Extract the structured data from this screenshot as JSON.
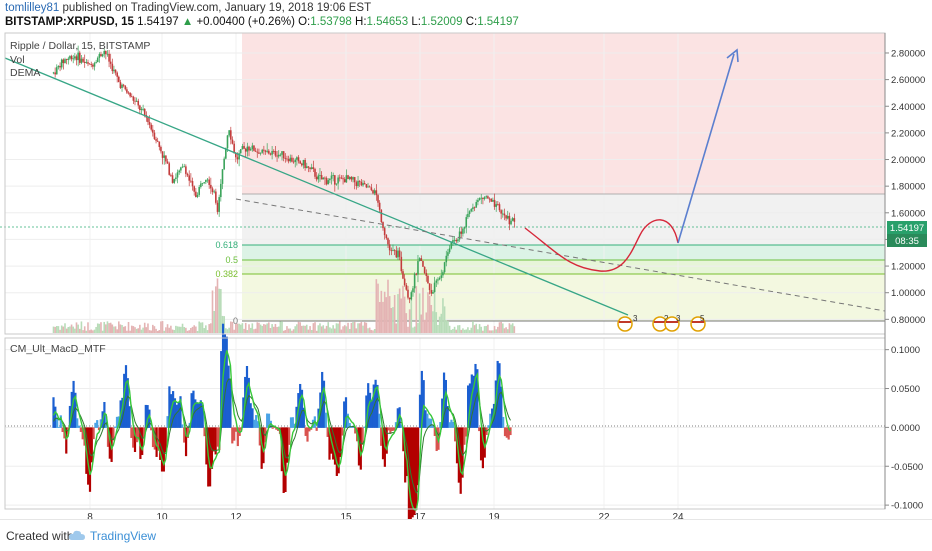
{
  "header": {
    "author": "tomlilley81",
    "published_text": "published on TradingView.com, January 19, 2018 19:06 EST",
    "symbol": "BITSTAMP:XRPUSD, 15",
    "last": "1.54197",
    "up_glyph": "▲",
    "change": "+0.00400 (+0.26%)",
    "o_label": "O:",
    "o": "1.53798",
    "h_label": "H:",
    "h": "1.54653",
    "l_label": "L:",
    "l": "1.52009",
    "c_label": "C:",
    "c": "1.54197"
  },
  "price_pane": {
    "legend": [
      "Ripple / Dollar, 15, BITSTAMP",
      "Vol",
      "DEMA"
    ],
    "price_badge": "1.54197",
    "time_badge": "08:35",
    "fib_labels": [
      "0.618",
      "0.5",
      "0.382",
      "0"
    ],
    "event_badges": [
      "3",
      "2",
      "3",
      "5"
    ]
  },
  "macd_pane": {
    "legend": "CM_Ult_MacD_MTF"
  },
  "colors": {
    "up": "#2e9e4a",
    "link": "#2a6ab4",
    "down_bar": "#b30000",
    "pos_bar": "#1b5fd1",
    "trend": "#37a686",
    "projection_red": "#d6283a",
    "projection_blue": "#5b7fcf",
    "badge_price": "#29a06b",
    "badge_time": "#2a8a5a"
  },
  "chart_data": [
    {
      "type": "line",
      "title": "Ripple / Dollar, 15, BITSTAMP",
      "xlabel": "",
      "ylabel": "",
      "x_ticks": [
        "8",
        "10",
        "12",
        "15",
        "17",
        "19",
        "22",
        "24"
      ],
      "y_ticks": [
        "2.80000",
        "2.60000",
        "2.40000",
        "2.20000",
        "2.00000",
        "1.80000",
        "1.60000",
        "1.40000",
        "1.20000",
        "1.00000",
        "0.80000"
      ],
      "ylim": [
        0.75,
        2.95
      ],
      "series": [
        {
          "x": [
            7.0,
            7.3,
            7.6,
            8.0,
            8.4,
            8.8,
            9.2,
            9.6,
            10.0,
            10.3,
            10.6,
            10.9,
            11.2,
            11.5,
            11.8,
            12.0,
            12.3,
            12.7,
            13.1,
            13.5,
            13.9,
            14.3,
            14.7,
            15.1,
            15.5,
            15.8,
            16.0,
            16.2,
            16.4,
            16.7,
            17.0,
            17.3,
            17.6,
            17.8,
            18.0,
            18.2,
            18.4,
            18.6,
            18.8,
            19.0,
            19.2,
            19.4,
            19.6
          ],
          "values": [
            2.65,
            2.75,
            2.78,
            2.7,
            2.82,
            2.58,
            2.45,
            2.3,
            2.05,
            1.85,
            1.95,
            1.72,
            1.9,
            1.65,
            2.25,
            2.0,
            2.1,
            2.05,
            2.05,
            2.0,
            1.95,
            1.85,
            1.85,
            1.85,
            1.8,
            1.75,
            1.5,
            1.3,
            1.3,
            0.95,
            1.25,
            1.0,
            1.15,
            1.35,
            1.4,
            1.5,
            1.65,
            1.7,
            1.72,
            1.65,
            1.6,
            1.55,
            1.54
          ]
        }
      ],
      "fibonacci": [
        {
          "level": "0.618",
          "price": 1.41
        },
        {
          "level": "0.5",
          "price": 1.31
        },
        {
          "level": "0.382",
          "price": 1.21
        },
        {
          "level": "0",
          "price": 0.86
        }
      ],
      "grid": true
    },
    {
      "type": "bar",
      "title": "CM_Ult_MacD_MTF",
      "y_ticks": [
        "0.1000",
        "0.0500",
        "0.0000",
        "-0.0500",
        "-0.1000"
      ],
      "ylim": [
        -0.105,
        0.115
      ],
      "grid": true
    }
  ]
}
